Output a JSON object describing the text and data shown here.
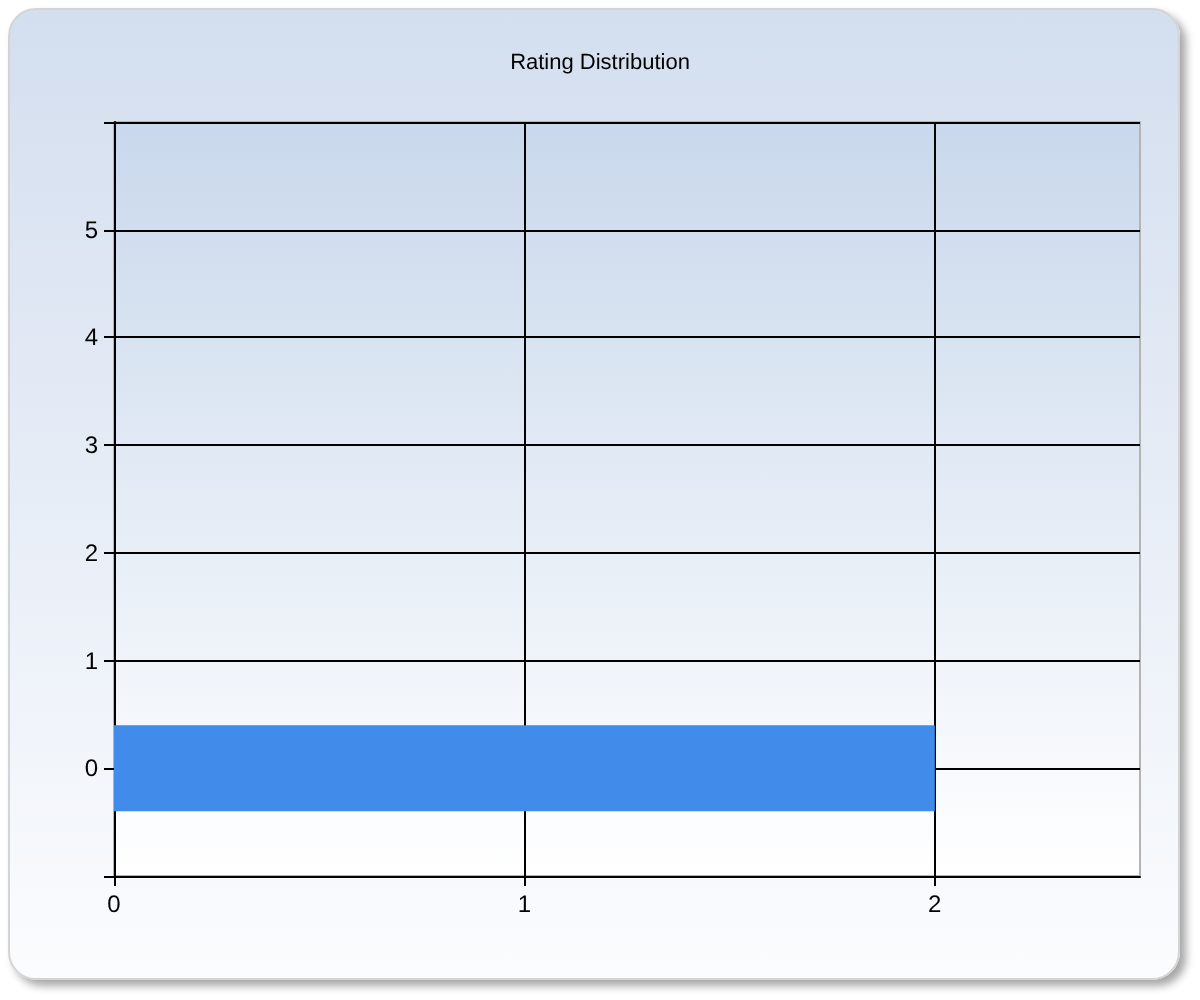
{
  "chart_data": {
    "type": "bar",
    "title": "Rating Distribution",
    "orientation": "horizontal",
    "categories": [
      "5",
      "4",
      "3",
      "2",
      "1",
      "0"
    ],
    "values": [
      null,
      null,
      null,
      null,
      null,
      2
    ],
    "color": "#418beb",
    "xlim": [
      0,
      2.5
    ],
    "xticks": [
      0,
      1,
      2
    ],
    "grid": true
  }
}
